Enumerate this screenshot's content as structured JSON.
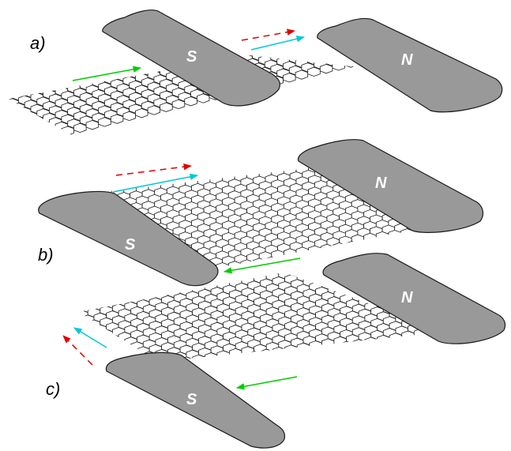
{
  "panels": [
    {
      "label": "a)",
      "magnet_south": "S",
      "magnet_north": "N",
      "arrows": [
        {
          "color": "#00cc00",
          "style": "solid"
        },
        {
          "color": "#e00000",
          "style": "dashed"
        },
        {
          "color": "#00c8d8",
          "style": "solid"
        }
      ]
    },
    {
      "label": "b)",
      "magnet_south": "S",
      "magnet_north": "N",
      "arrows": [
        {
          "color": "#e00000",
          "style": "dashed"
        },
        {
          "color": "#00c8d8",
          "style": "solid"
        },
        {
          "color": "#00cc00",
          "style": "solid"
        }
      ]
    },
    {
      "label": "c)",
      "magnet_south": "S",
      "magnet_north": "N",
      "arrows": [
        {
          "color": "#00c8d8",
          "style": "solid"
        },
        {
          "color": "#e00000",
          "style": "dashed"
        },
        {
          "color": "#00cc00",
          "style": "solid"
        }
      ]
    }
  ],
  "colors": {
    "magnet_fill": "#999999",
    "outline": "#1a1a1a",
    "background": "#ffffff"
  }
}
